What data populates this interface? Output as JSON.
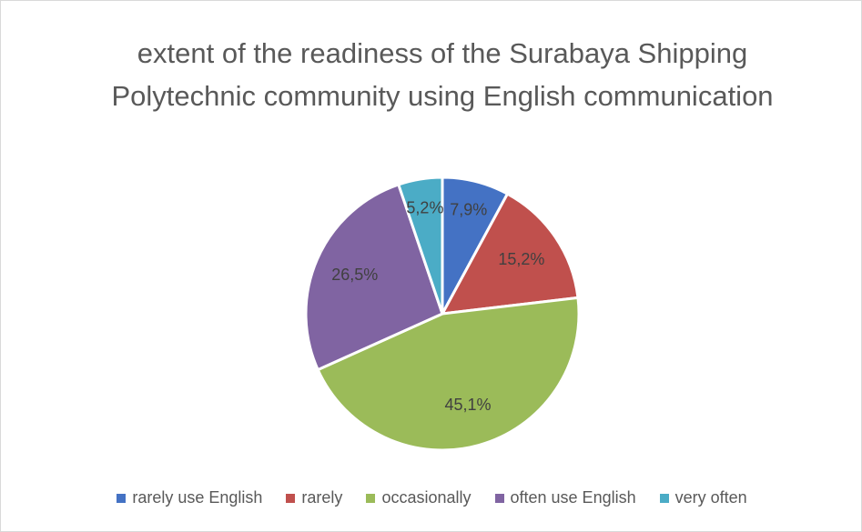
{
  "chart_data": {
    "type": "pie",
    "title": "extent of the readiness of the Surabaya Shipping Polytechnic community using English communication",
    "categories": [
      "rarely use English",
      "rarely",
      "occasionally",
      "often use English",
      "very often"
    ],
    "values": [
      7.9,
      15.2,
      45.1,
      26.5,
      5.2
    ],
    "value_labels": [
      "7,9%",
      "15,2%",
      "45,1%",
      "26,5%",
      "5,2%"
    ],
    "colors": [
      "#4472c4",
      "#c0504d",
      "#9bbb59",
      "#8064a2",
      "#4bacc6"
    ],
    "legend": "bottom"
  }
}
